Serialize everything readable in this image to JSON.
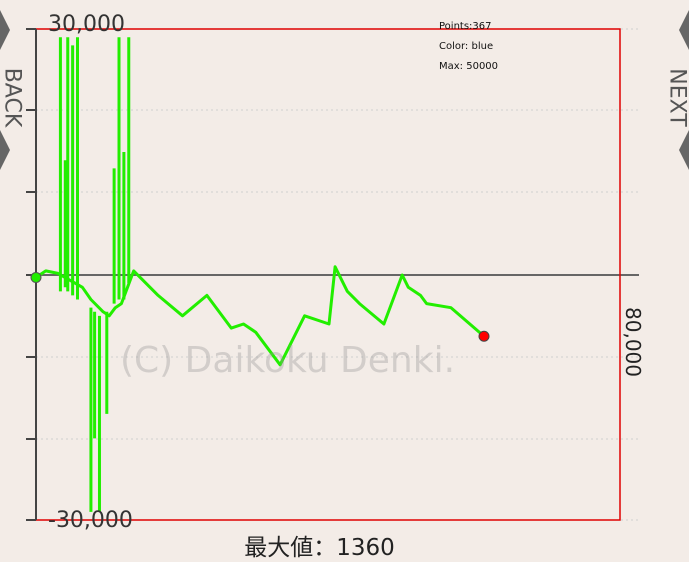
{
  "nav": {
    "back_label": "BACK",
    "next_label": "NEXT"
  },
  "info": {
    "points": "Points:367",
    "color": "Color: blue",
    "max": "Max: 50000"
  },
  "watermark": "(C) Daikoku Denki.",
  "footer": "最大値：1360",
  "right_label": "80,000",
  "chart_data": {
    "type": "line",
    "y_tick_labels": [
      "30,000",
      "-30,000"
    ],
    "ylim": [
      -30000,
      30000
    ],
    "zero_line": true,
    "grid": true,
    "xlim": [
      0,
      367
    ],
    "series": [
      {
        "color": "#22ee00",
        "x": [
          0,
          8,
          18,
          38,
          45,
          55,
          60,
          65,
          70,
          80,
          100,
          120,
          140,
          160,
          170,
          180,
          200,
          220,
          240,
          245,
          255,
          265,
          285,
          300,
          305,
          315,
          320,
          340,
          367
        ],
        "y": [
          -300,
          500,
          200,
          -1500,
          -3000,
          -4500,
          -5000,
          -4000,
          -3500,
          500,
          -2500,
          -5000,
          -2500,
          -6500,
          -6000,
          -7000,
          -11000,
          -5000,
          -6000,
          1000,
          -2000,
          -3500,
          -6000,
          0,
          -1500,
          -2500,
          -3500,
          -4000,
          -7500
        ]
      }
    ],
    "spikes": [
      {
        "x": 20,
        "high": 29000,
        "low": -2000
      },
      {
        "x": 24,
        "high": 14000,
        "low": -1500
      },
      {
        "x": 26,
        "high": 29000,
        "low": -2000
      },
      {
        "x": 30,
        "high": 28000,
        "low": -2500
      },
      {
        "x": 34,
        "high": 29000,
        "low": -3000
      },
      {
        "x": 45,
        "high": -4000,
        "low": -29000
      },
      {
        "x": 48,
        "high": -4500,
        "low": -20000
      },
      {
        "x": 52,
        "high": -5000,
        "low": -29000
      },
      {
        "x": 58,
        "high": -4500,
        "low": -17000
      },
      {
        "x": 64,
        "high": 13000,
        "low": -3500
      },
      {
        "x": 68,
        "high": 29000,
        "low": -3000
      },
      {
        "x": 72,
        "high": 15000,
        "low": -3000
      },
      {
        "x": 76,
        "high": 29000,
        "low": -1000
      }
    ],
    "start_marker": {
      "x": 0,
      "y": -300,
      "color": "#22ee00"
    },
    "end_marker": {
      "x": 367,
      "y": -7500,
      "color": "#ff0000"
    }
  }
}
